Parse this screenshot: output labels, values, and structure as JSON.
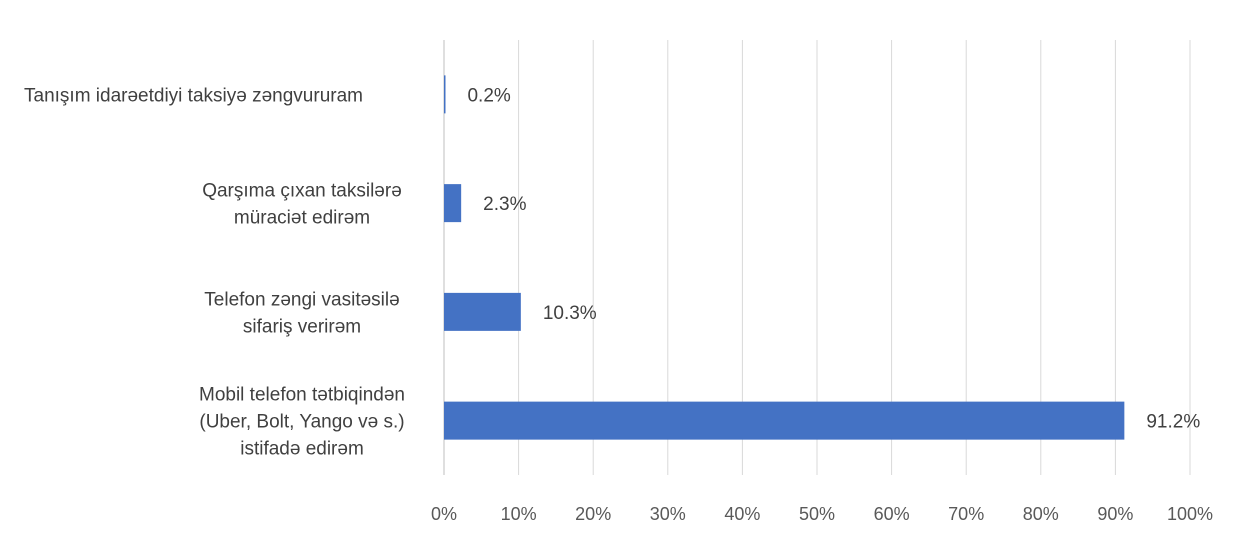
{
  "chart_data": {
    "type": "bar",
    "orientation": "horizontal",
    "categories": [
      [
        "Tanışım idarəetdiyi taksiyə zəngvururam"
      ],
      [
        "Qarşıma çıxan taksilərə",
        "müraciət edirəm"
      ],
      [
        "Telefon zəngi vasitəsilə",
        "sifariş verirəm"
      ],
      [
        "Mobil telefon tətbiqindən",
        "(Uber, Bolt, Yango və s.)",
        "istifadə edirəm"
      ]
    ],
    "values": [
      0.2,
      2.3,
      10.3,
      91.2
    ],
    "data_labels": [
      "0.2%",
      "2.3%",
      "10.3%",
      "91.2%"
    ],
    "xlim": [
      0,
      100
    ],
    "xticks": [
      0,
      10,
      20,
      30,
      40,
      50,
      60,
      70,
      80,
      90,
      100
    ],
    "xtick_labels": [
      "0%",
      "10%",
      "20%",
      "30%",
      "40%",
      "50%",
      "60%",
      "70%",
      "80%",
      "90%",
      "100%"
    ],
    "bar_color": "#4472C4",
    "grid": true,
    "legend": "none"
  }
}
